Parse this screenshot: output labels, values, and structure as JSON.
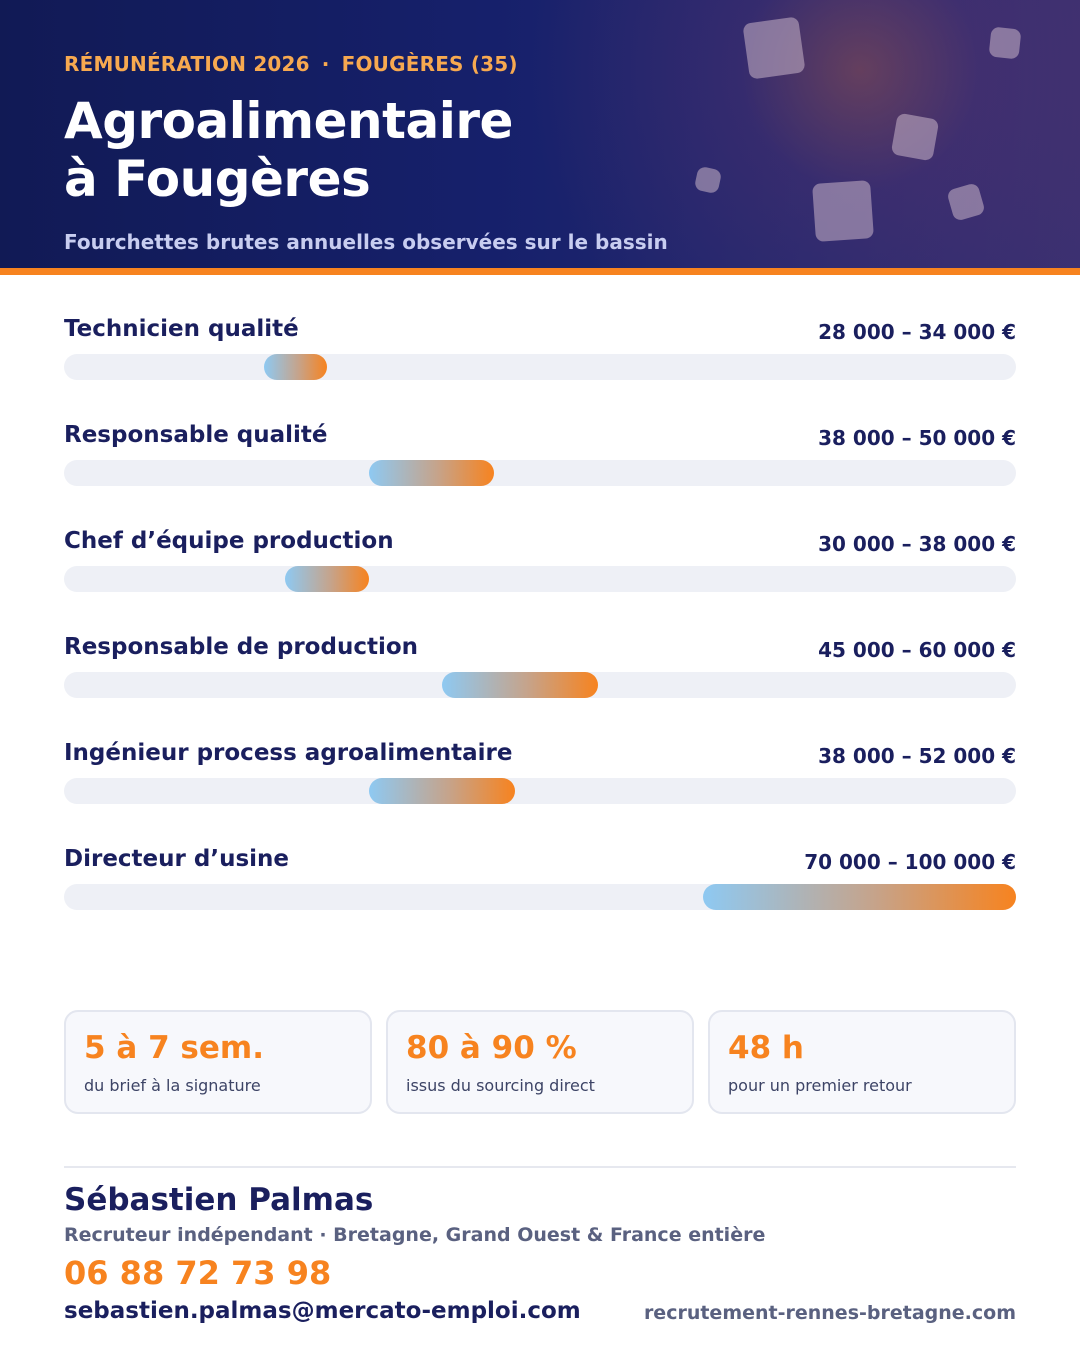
{
  "header": {
    "eyebrow_left": "RÉMUNÉRATION 2026",
    "eyebrow_separator": "·",
    "eyebrow_right": "FOUGÈRES (35)",
    "title_line1": "Agroalimentaire",
    "title_line2": "à Fougères",
    "subtitle": "Fourchettes brutes annuelles observées sur le bassin"
  },
  "chart_data": {
    "type": "bar",
    "orientation": "horizontal-range",
    "xlim": [
      0,
      100000
    ],
    "grid": false,
    "categories": [
      "Technicien qualité",
      "Responsable qualité",
      "Chef d’équipe production",
      "Responsable de production",
      "Ingénieur process agroalimentaire",
      "Directeur d’usine"
    ],
    "ranges": [
      {
        "min": 28000,
        "max": 34000,
        "label": "28 000 – 34 000 €"
      },
      {
        "min": 38000,
        "max": 50000,
        "label": "38 000 – 50 000 €"
      },
      {
        "min": 30000,
        "max": 38000,
        "label": "30 000 – 38 000 €"
      },
      {
        "min": 45000,
        "max": 60000,
        "label": "45 000 – 60 000 €"
      },
      {
        "min": 38000,
        "max": 52000,
        "label": "38 000 – 52 000 €"
      },
      {
        "min": 70000,
        "max": 100000,
        "label": "70 000 – 100 000 €"
      }
    ],
    "colors": {
      "bar_start": "#8ec9f2",
      "bar_end": "#f7831f",
      "track": "#eef0f6"
    }
  },
  "stats": [
    {
      "value": "5 à 7 sem.",
      "label": "du brief à la signature"
    },
    {
      "value": "80 à 90 %",
      "label": "issus du sourcing direct"
    },
    {
      "value": "48 h",
      "label": "pour un premier retour"
    }
  ],
  "contact": {
    "name": "Sébastien Palmas",
    "role": "Recruteur indépendant · Bretagne, Grand Ouest & France entière",
    "phone": "06 88 72 73 98",
    "email": "sebastien.palmas@mercato-emploi.com",
    "website": "recrutement-rennes-bretagne.com"
  },
  "colors": {
    "navy": "#1a1f5e",
    "accent": "#f7831f"
  }
}
